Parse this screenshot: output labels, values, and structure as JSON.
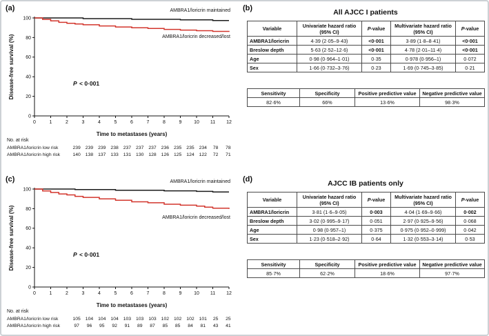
{
  "chart_data": [
    {
      "panel_label": "(a)",
      "type": "line",
      "subtype": "kaplan-meier-step",
      "xlabel": "Time to metastases (years)",
      "ylabel": "Disease-free survival (%)",
      "xlim": [
        0,
        12
      ],
      "ylim": [
        0,
        100
      ],
      "xticks": [
        0,
        1,
        2,
        3,
        4,
        5,
        6,
        7,
        8,
        9,
        10,
        11,
        12
      ],
      "yticks": [
        0,
        20,
        40,
        60,
        80,
        100
      ],
      "p_label": "P",
      "p_value": "< 0·001",
      "series": [
        {
          "name": "AMBRA1/loricrin maintained",
          "color": "#1a1a1a",
          "points": [
            [
              0,
              100
            ],
            [
              3,
              99.3
            ],
            [
              6,
              98.6
            ],
            [
              9,
              98
            ],
            [
              11,
              97.4
            ]
          ]
        },
        {
          "name": "AMBRA1/loricrin decreased/lost",
          "color": "#d2342b",
          "points": [
            [
              0,
              100
            ],
            [
              0.5,
              98.5
            ],
            [
              1,
              97
            ],
            [
              1.5,
              95.5
            ],
            [
              2,
              94.5
            ],
            [
              2.5,
              93.8
            ],
            [
              3,
              93
            ],
            [
              4,
              91.8
            ],
            [
              5,
              90.8
            ],
            [
              6,
              90
            ],
            [
              7,
              89.2
            ],
            [
              8,
              88.3
            ],
            [
              9,
              87.6
            ],
            [
              10,
              87
            ],
            [
              11,
              86.3
            ],
            [
              12,
              85.8
            ]
          ]
        }
      ],
      "risk_table": {
        "title": "No. at risk",
        "rows": [
          {
            "label": "AMBRA1/loricrin low risk",
            "values": [
              "239",
              "239",
              "239",
              "238",
              "237",
              "237",
              "237",
              "236",
              "235",
              "235",
              "234",
              "78",
              "78"
            ]
          },
          {
            "label": "AMBRA1/loricrin high risk",
            "values": [
              "140",
              "138",
              "137",
              "133",
              "131",
              "130",
              "128",
              "126",
              "125",
              "124",
              "122",
              "72",
              "71"
            ]
          }
        ]
      }
    },
    {
      "panel_label": "(b)",
      "type": "table",
      "title": "All AJCC I patients",
      "hazard_table": {
        "headers": [
          "Variable",
          "Univariate hazard ratio (95% CI)",
          "P-value",
          "Multivariate hazard ratio (95% CI)",
          "P-value"
        ],
        "p_header_cols": [
          2,
          4
        ],
        "rows": [
          {
            "cells": [
              "AMBRA1/loricrin",
              "4·39 (2·05–9·43)",
              "<0·001",
              "3·89 (1·8–8·41)",
              "<0·001"
            ],
            "bold": [
              2,
              4
            ]
          },
          {
            "cells": [
              "Breslow depth",
              "5·63 (2·52–12·6)",
              "<0·001",
              "4·78 (2·01–11·4)",
              "<0·001"
            ],
            "bold": [
              2,
              4
            ]
          },
          {
            "cells": [
              "Age",
              "0·98 (0·964–1·01)",
              "0·35",
              "0·978 (0·956–1)",
              "0·072"
            ],
            "bold": []
          },
          {
            "cells": [
              "Sex",
              "1·66 (0·732–3·76)",
              "0·23",
              "1·69 (0·745–3·85)",
              "0·21"
            ],
            "bold": []
          }
        ]
      },
      "metrics_table": {
        "headers": [
          "Sensitivity",
          "Specificity",
          "Positive predictive value",
          "Negative predictive value"
        ],
        "values": [
          "82·6%",
          "66%",
          "13·6%",
          "98·3%"
        ]
      }
    },
    {
      "panel_label": "(c)",
      "type": "line",
      "subtype": "kaplan-meier-step",
      "xlabel": "Time to metastases (years)",
      "ylabel": "Disease-free survival (%)",
      "xlim": [
        0,
        12
      ],
      "ylim": [
        0,
        100
      ],
      "xticks": [
        0,
        1,
        2,
        3,
        4,
        5,
        6,
        7,
        8,
        9,
        10,
        11,
        12
      ],
      "yticks": [
        0,
        20,
        40,
        60,
        80,
        100
      ],
      "p_label": "P",
      "p_value": "< 0·001",
      "series": [
        {
          "name": "AMBRA1/loricrin maintained",
          "color": "#1a1a1a",
          "points": [
            [
              0,
              100
            ],
            [
              2.5,
              99.5
            ],
            [
              5,
              98.8
            ],
            [
              8,
              98.2
            ],
            [
              10,
              97.6
            ],
            [
              11,
              97
            ]
          ]
        },
        {
          "name": "AMBRA1/loricrin decreased/lost",
          "color": "#d2342b",
          "points": [
            [
              0,
              100
            ],
            [
              0.5,
              98
            ],
            [
              1,
              96.5
            ],
            [
              1.5,
              95
            ],
            [
              2,
              94
            ],
            [
              2.5,
              92.5
            ],
            [
              3,
              91.5
            ],
            [
              4,
              90
            ],
            [
              5,
              88.5
            ],
            [
              6,
              87
            ],
            [
              7,
              86
            ],
            [
              8,
              84.5
            ],
            [
              9,
              83.5
            ],
            [
              10,
              82.5
            ],
            [
              10.5,
              81.5
            ],
            [
              11,
              80.5
            ],
            [
              12,
              79.8
            ]
          ]
        }
      ],
      "risk_table": {
        "title": "No. at risk",
        "rows": [
          {
            "label": "AMBRA1/loricrin low risk",
            "values": [
              "105",
              "104",
              "104",
              "104",
              "103",
              "103",
              "103",
              "102",
              "102",
              "102",
              "101",
              "25",
              "25"
            ]
          },
          {
            "label": "AMBRA1/loricrin high risk",
            "values": [
              "97",
              "96",
              "95",
              "92",
              "91",
              "89",
              "87",
              "85",
              "85",
              "84",
              "81",
              "43",
              "41"
            ]
          }
        ]
      }
    },
    {
      "panel_label": "(d)",
      "type": "table",
      "title": "AJCC IB patients only",
      "hazard_table": {
        "headers": [
          "Variable",
          "Univariate hazard ratio (95% CI)",
          "P-value",
          "Multivariate hazard ratio (95% CI)",
          "P-value"
        ],
        "p_header_cols": [
          2,
          4
        ],
        "rows": [
          {
            "cells": [
              "AMBRA1/loricrin",
              "3·81 (1·6–9·05)",
              "0·003",
              "4·04 (1·69–9·66)",
              "0·002"
            ],
            "bold": [
              2,
              4
            ]
          },
          {
            "cells": [
              "Breslow depth",
              "3·02 (0·995–9·17)",
              "0·051",
              "2·97 (0·925–9·56)",
              "0·068"
            ],
            "bold": []
          },
          {
            "cells": [
              "Age",
              "0·98 (0·957–1)",
              "0·375",
              "0·975 (0·952–0·999)",
              "0·042"
            ],
            "bold": []
          },
          {
            "cells": [
              "Sex",
              "1·23 (0·518–2·92)",
              "0·64",
              "1·32 (0·553–3·14)",
              "0·53"
            ],
            "bold": []
          }
        ]
      },
      "metrics_table": {
        "headers": [
          "Sensitivity",
          "Specificity",
          "Positive predictive value",
          "Negative predictive value"
        ],
        "values": [
          "85·7%",
          "62·2%",
          "18·6%",
          "97·7%"
        ]
      }
    }
  ]
}
